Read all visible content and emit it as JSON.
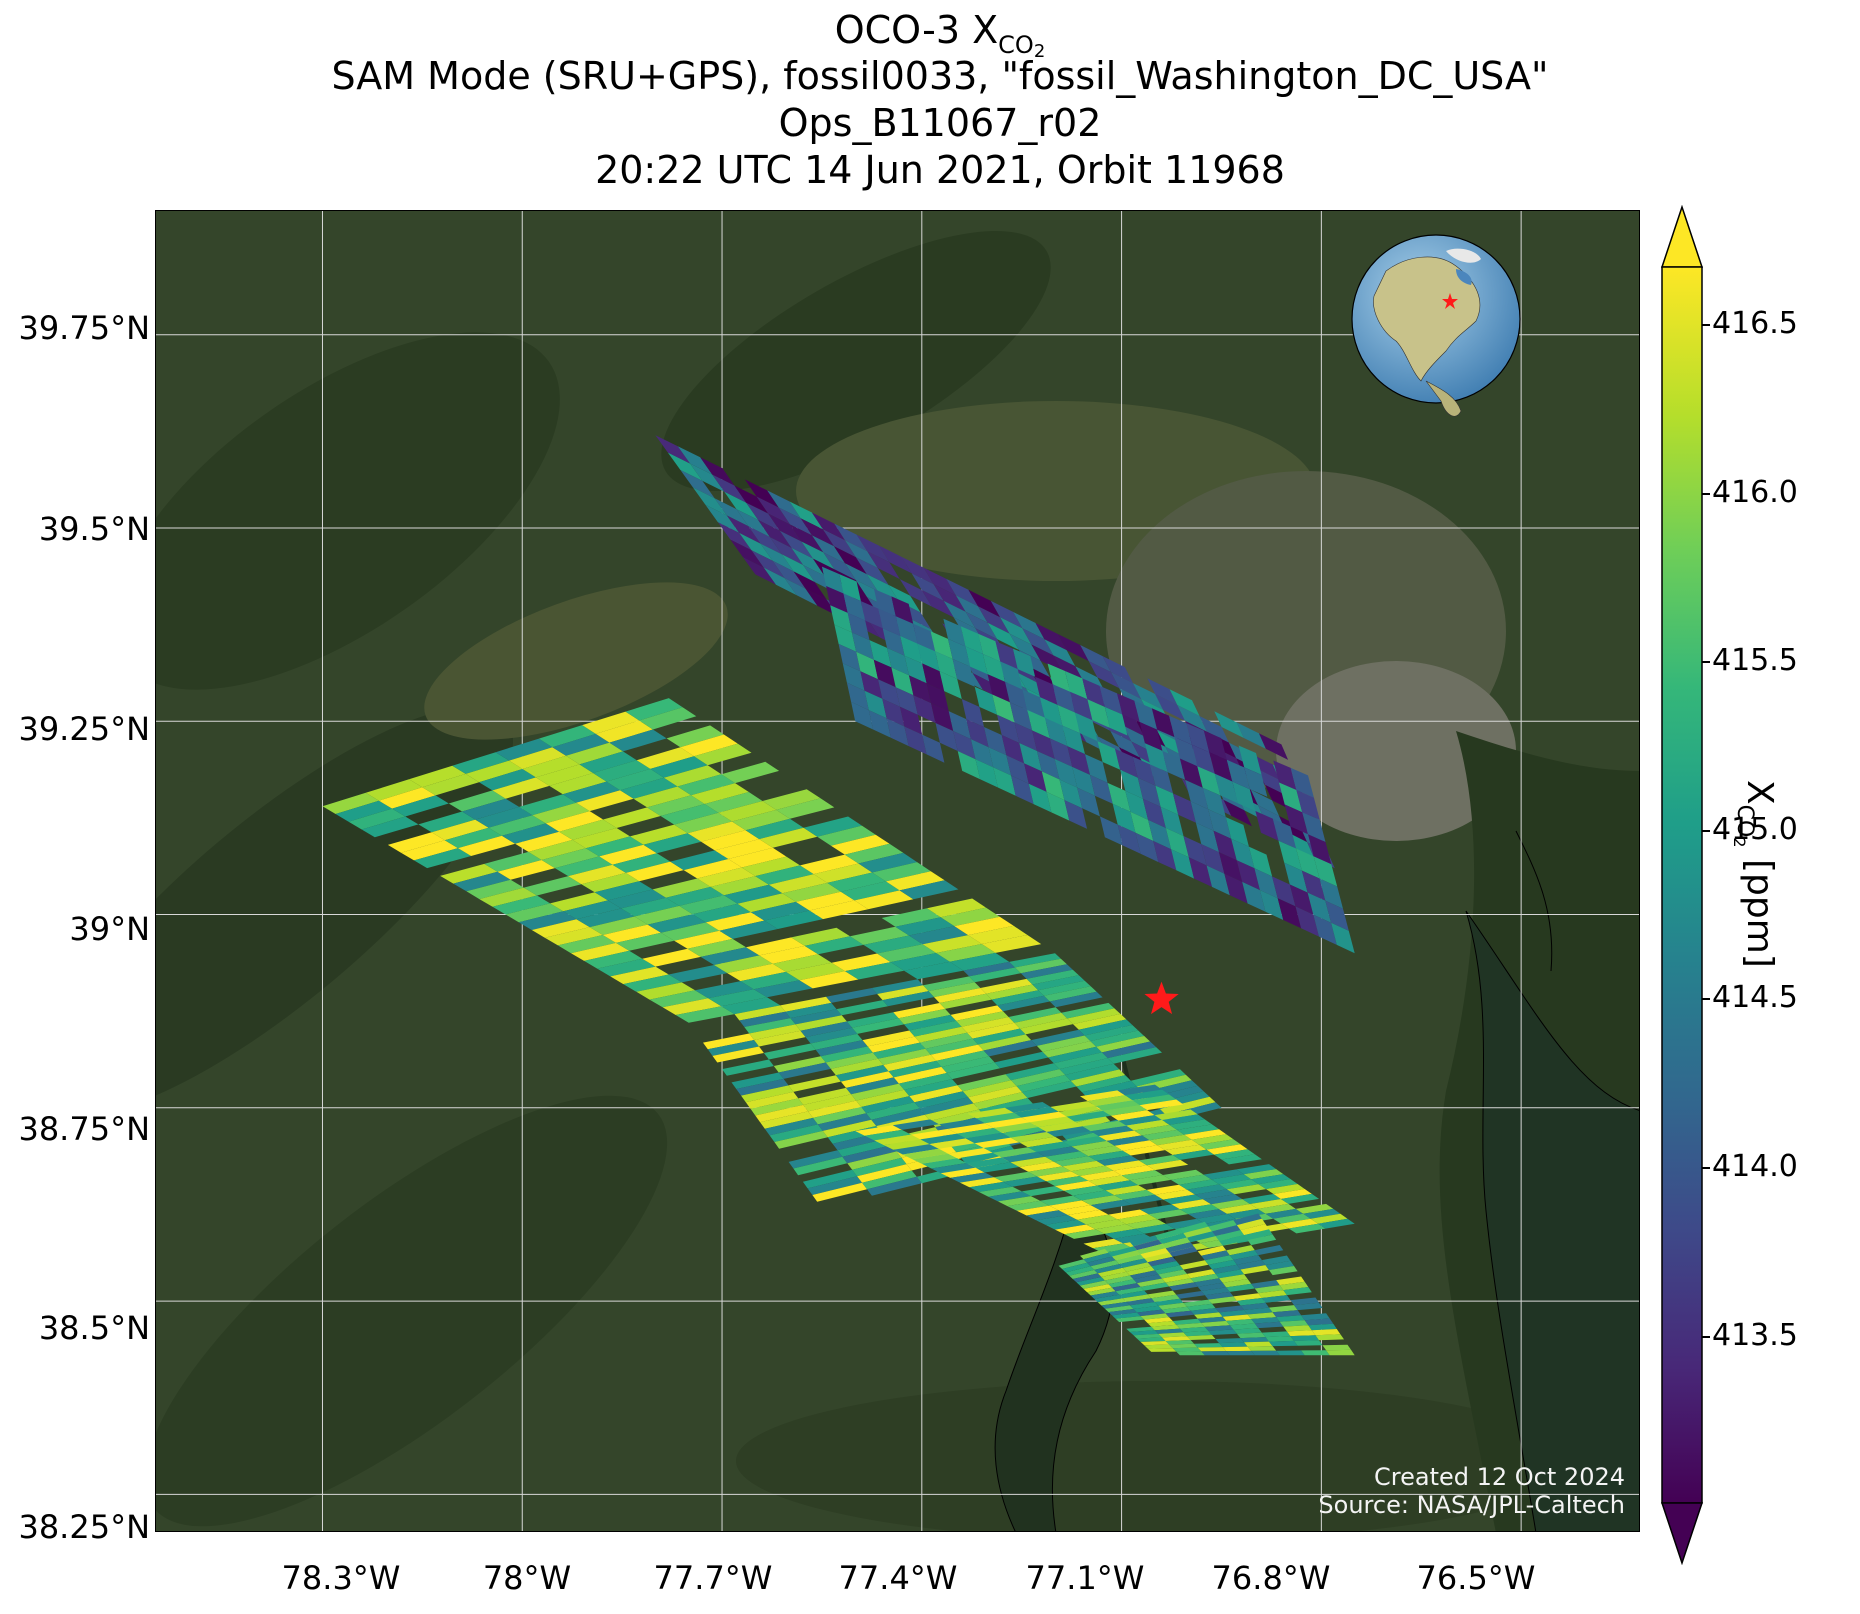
{
  "header": {
    "title_main": "OCO-3 X",
    "title_sub": "CO",
    "title_sub2": "2",
    "line2": "SAM Mode (SRU+GPS), fossil0033, \"fossil_Washington_DC_USA\"",
    "line3": "Ops_B11067_r02",
    "line4": "20:22 UTC 14 Jun 2021, Orbit 11968"
  },
  "map": {
    "y_ticks": [
      "39.75°N",
      "39.5°N",
      "39.25°N",
      "39°N",
      "38.75°N",
      "38.5°N",
      "38.25°N"
    ],
    "x_ticks": [
      "78.3°W",
      "78°W",
      "77.7°W",
      "77.4°W",
      "77.1°W",
      "76.8°W",
      "76.5°W"
    ],
    "target_marker": {
      "label": "red-star",
      "lon": -77.04,
      "lat": 38.89,
      "color": "#ff1a1a"
    },
    "credit_line1": "Created 12 Oct 2024",
    "credit_line2": "Source: NASA/JPL-Caltech"
  },
  "colorbar": {
    "ticks": [
      "416.5",
      "416.0",
      "415.5",
      "415.0",
      "414.5",
      "414.0",
      "413.5"
    ],
    "label_main": "X",
    "label_sub": "CO",
    "label_sub2": "2",
    "label_units": " [ppm]",
    "colormap": "viridis",
    "colors": [
      "#440154",
      "#482878",
      "#3e4989",
      "#31688e",
      "#26828e",
      "#1f9e89",
      "#35b779",
      "#6ece58",
      "#b5de2b",
      "#fde725"
    ],
    "vmin": 413.0,
    "vmax": 416.7
  },
  "chart_data": {
    "type": "heatmap",
    "xlabel": "",
    "ylabel": "",
    "xlim": [
      -78.55,
      -76.32
    ],
    "ylim": [
      38.2,
      39.91
    ],
    "colorbar_label": "XCO2 [ppm]",
    "clim": [
      413.0,
      416.7
    ],
    "swaths": [
      {
        "corners": [
          [
            -77.8,
            39.62
          ],
          [
            -77.65,
            39.44
          ],
          [
            -76.78,
            39.06
          ],
          [
            -76.86,
            39.22
          ]
        ],
        "mean_xco2": 413.9
      },
      {
        "corners": [
          [
            -77.55,
            39.45
          ],
          [
            -77.5,
            39.25
          ],
          [
            -76.75,
            38.95
          ],
          [
            -76.82,
            39.18
          ]
        ],
        "mean_xco2": 414.3
      },
      {
        "corners": [
          [
            -78.3,
            39.14
          ],
          [
            -77.78,
            39.28
          ],
          [
            -77.2,
            38.95
          ],
          [
            -77.75,
            38.86
          ]
        ],
        "mean_xco2": 415.9
      },
      {
        "corners": [
          [
            -77.75,
            38.86
          ],
          [
            -77.2,
            38.95
          ],
          [
            -76.95,
            38.75
          ],
          [
            -77.55,
            38.62
          ]
        ],
        "mean_xco2": 415.6
      },
      {
        "corners": [
          [
            -77.5,
            38.72
          ],
          [
            -77.05,
            38.78
          ],
          [
            -76.75,
            38.6
          ],
          [
            -77.1,
            38.55
          ]
        ],
        "mean_xco2": 415.8
      },
      {
        "corners": [
          [
            -77.2,
            38.55
          ],
          [
            -76.9,
            38.62
          ],
          [
            -76.75,
            38.43
          ],
          [
            -77.05,
            38.43
          ]
        ],
        "mean_xco2": 415.4
      }
    ],
    "target": {
      "name": "fossil_Washington_DC_USA",
      "lon": -77.04,
      "lat": 38.89
    }
  }
}
